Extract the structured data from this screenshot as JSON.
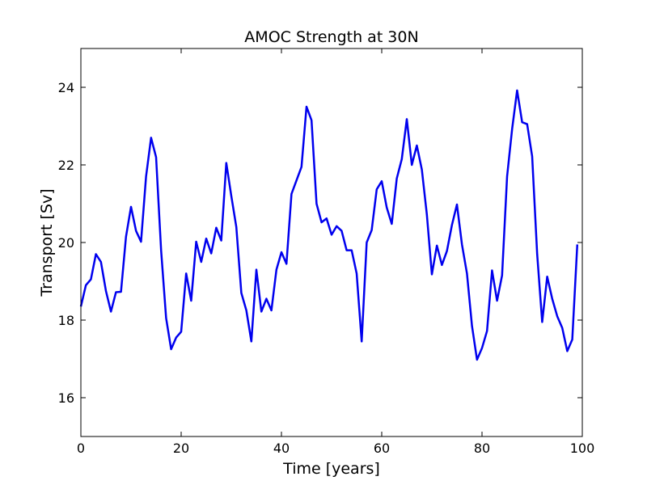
{
  "chart_data": {
    "type": "line",
    "title": "AMOC Strength at 30N",
    "xlabel": "Time [years]",
    "ylabel": "Transport [Sv]",
    "xlim": [
      0,
      100
    ],
    "ylim": [
      15,
      25
    ],
    "xticks": [
      0,
      20,
      40,
      60,
      80,
      100
    ],
    "yticks": [
      16,
      18,
      20,
      22,
      24
    ],
    "xtick_labels": [
      "0",
      "20",
      "40",
      "60",
      "80",
      "100"
    ],
    "ytick_labels": [
      "16",
      "18",
      "20",
      "22",
      "24"
    ],
    "grid": false,
    "legend": "none",
    "series": [
      {
        "color": "#0000ee",
        "x": [
          0,
          1,
          2,
          3,
          4,
          5,
          6,
          7,
          8,
          9,
          10,
          11,
          12,
          13,
          14,
          15,
          16,
          17,
          18,
          19,
          20,
          21,
          22,
          23,
          24,
          25,
          26,
          27,
          28,
          29,
          30,
          31,
          32,
          33,
          34,
          35,
          36,
          37,
          38,
          39,
          40,
          41,
          42,
          43,
          44,
          45,
          46,
          47,
          48,
          49,
          50,
          51,
          52,
          53,
          54,
          55,
          56,
          57,
          58,
          59,
          60,
          61,
          62,
          63,
          64,
          65,
          66,
          67,
          68,
          69,
          70,
          71,
          72,
          73,
          74,
          75,
          76,
          77,
          78,
          79,
          80,
          81,
          82,
          83,
          84,
          85,
          86,
          87,
          88,
          89,
          90,
          91,
          92,
          93,
          94,
          95,
          96,
          97,
          98,
          99
        ],
        "y": [
          18.35,
          18.9,
          19.05,
          19.7,
          19.5,
          18.75,
          18.22,
          18.72,
          18.73,
          20.15,
          20.92,
          20.3,
          20.02,
          21.7,
          22.7,
          22.2,
          19.8,
          18.05,
          17.25,
          17.55,
          17.7,
          19.2,
          18.5,
          20.02,
          19.5,
          20.1,
          19.72,
          20.38,
          20.05,
          22.05,
          21.2,
          20.4,
          18.7,
          18.25,
          17.45,
          19.3,
          18.22,
          18.55,
          18.25,
          19.3,
          19.75,
          19.45,
          21.25,
          21.6,
          21.95,
          23.5,
          23.15,
          21.0,
          20.52,
          20.62,
          20.2,
          20.42,
          20.3,
          19.8,
          19.8,
          19.2,
          17.45,
          20.0,
          20.32,
          21.37,
          21.58,
          20.9,
          20.48,
          21.65,
          22.15,
          23.18,
          22.0,
          22.5,
          21.88,
          20.72,
          19.18,
          19.92,
          19.42,
          19.78,
          20.45,
          20.98,
          19.95,
          19.2,
          17.85,
          16.98,
          17.28,
          17.72,
          19.28,
          18.5,
          19.15,
          21.7,
          22.92,
          23.92,
          23.1,
          23.05,
          22.22,
          19.7,
          17.95,
          19.12,
          18.55,
          18.1,
          17.8,
          17.2,
          17.5,
          19.95
        ]
      }
    ]
  }
}
